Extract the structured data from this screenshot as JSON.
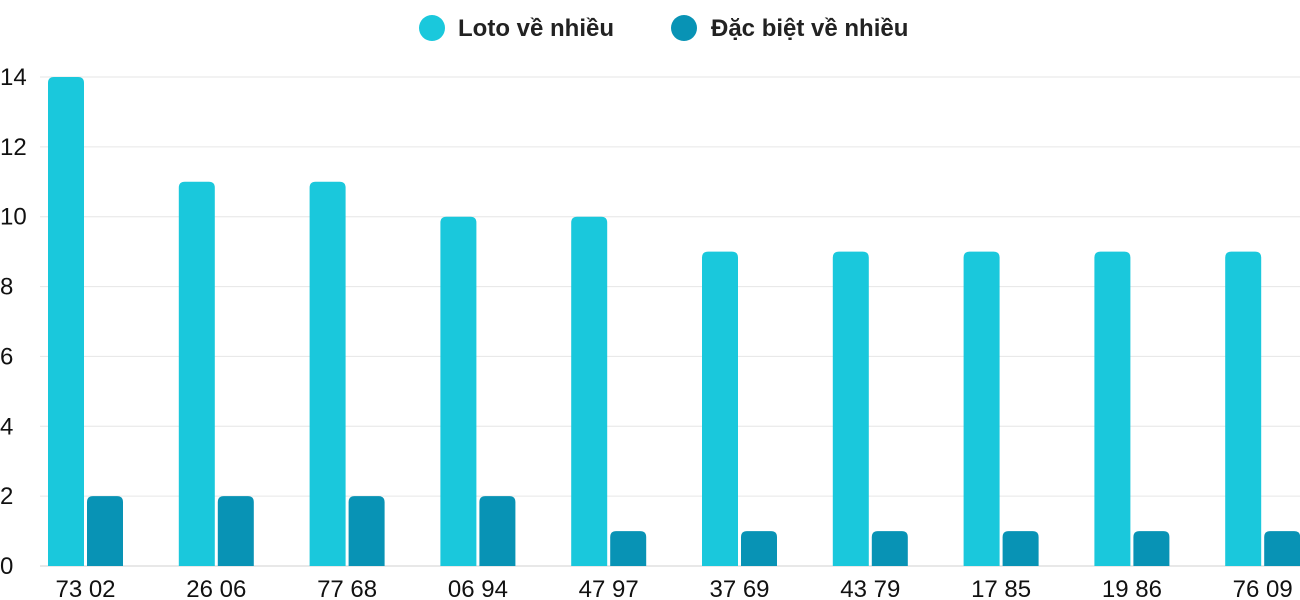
{
  "colors": {
    "loto": "#1ac8dc",
    "dac_biet": "#0893b5",
    "grid": "#e6e6e6",
    "text": "#111111"
  },
  "chart_data": {
    "type": "bar",
    "categories": [
      "73 02",
      "26 06",
      "77 68",
      "06 94",
      "47 97",
      "37 69",
      "43 79",
      "17 85",
      "19 86",
      "76 09"
    ],
    "series": [
      {
        "name": "Loto về nhiều",
        "values": [
          14,
          11,
          11,
          10,
          10,
          9,
          9,
          9,
          9,
          9
        ]
      },
      {
        "name": "Đặc biệt về nhiều",
        "values": [
          2,
          2,
          2,
          2,
          1,
          1,
          1,
          1,
          1,
          1
        ]
      }
    ],
    "ylim": [
      0,
      14
    ],
    "yticks": [
      "0",
      "2",
      "4",
      "6",
      "8",
      "10",
      "12",
      "14"
    ],
    "grid": true,
    "legend_position": "top-center"
  }
}
